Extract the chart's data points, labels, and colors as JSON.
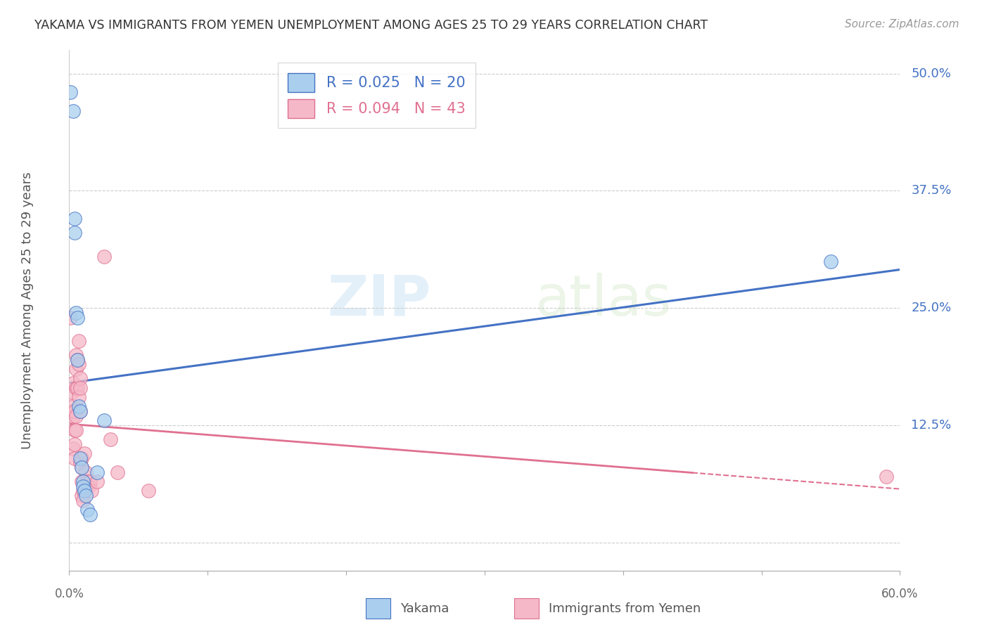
{
  "title": "YAKAMA VS IMMIGRANTS FROM YEMEN UNEMPLOYMENT AMONG AGES 25 TO 29 YEARS CORRELATION CHART",
  "source": "Source: ZipAtlas.com",
  "ylabel": "Unemployment Among Ages 25 to 29 years",
  "yticks": [
    0.0,
    0.125,
    0.25,
    0.375,
    0.5
  ],
  "ytick_labels": [
    "",
    "12.5%",
    "25.0%",
    "37.5%",
    "50.0%"
  ],
  "xmin": 0.0,
  "xmax": 0.6,
  "ymin": -0.03,
  "ymax": 0.525,
  "series1_color": "#aacfee",
  "series2_color": "#f5b8c8",
  "trendline1_color": "#4472c4",
  "trendline2_color": "#e07090",
  "watermark_zip": "ZIP",
  "watermark_atlas": "atlas",
  "legend_r1": "R = 0.025",
  "legend_n1": "N = 20",
  "legend_r2": "R = 0.094",
  "legend_n2": "N = 43",
  "legend_label1": "Yakama",
  "legend_label2": "Immigrants from Yemen",
  "yakama_x": [
    0.001,
    0.003,
    0.004,
    0.004,
    0.005,
    0.006,
    0.006,
    0.007,
    0.008,
    0.008,
    0.009,
    0.01,
    0.01,
    0.011,
    0.012,
    0.013,
    0.015,
    0.02,
    0.025,
    0.55
  ],
  "yakama_y": [
    0.48,
    0.46,
    0.345,
    0.33,
    0.245,
    0.24,
    0.195,
    0.145,
    0.14,
    0.09,
    0.08,
    0.065,
    0.06,
    0.055,
    0.05,
    0.035,
    0.03,
    0.075,
    0.13,
    0.3
  ],
  "yemen_x": [
    0.001,
    0.002,
    0.002,
    0.003,
    0.003,
    0.003,
    0.003,
    0.004,
    0.004,
    0.004,
    0.004,
    0.005,
    0.005,
    0.005,
    0.005,
    0.005,
    0.006,
    0.006,
    0.007,
    0.007,
    0.007,
    0.008,
    0.008,
    0.008,
    0.008,
    0.009,
    0.009,
    0.009,
    0.009,
    0.01,
    0.01,
    0.011,
    0.012,
    0.013,
    0.014,
    0.015,
    0.016,
    0.02,
    0.025,
    0.03,
    0.035,
    0.057,
    0.59
  ],
  "yemen_y": [
    0.24,
    0.16,
    0.14,
    0.17,
    0.145,
    0.135,
    0.1,
    0.14,
    0.12,
    0.105,
    0.09,
    0.2,
    0.185,
    0.165,
    0.135,
    0.12,
    0.195,
    0.165,
    0.215,
    0.19,
    0.155,
    0.175,
    0.165,
    0.14,
    0.085,
    0.09,
    0.08,
    0.065,
    0.05,
    0.055,
    0.045,
    0.095,
    0.075,
    0.065,
    0.06,
    0.065,
    0.055,
    0.065,
    0.305,
    0.11,
    0.075,
    0.055,
    0.07
  ]
}
